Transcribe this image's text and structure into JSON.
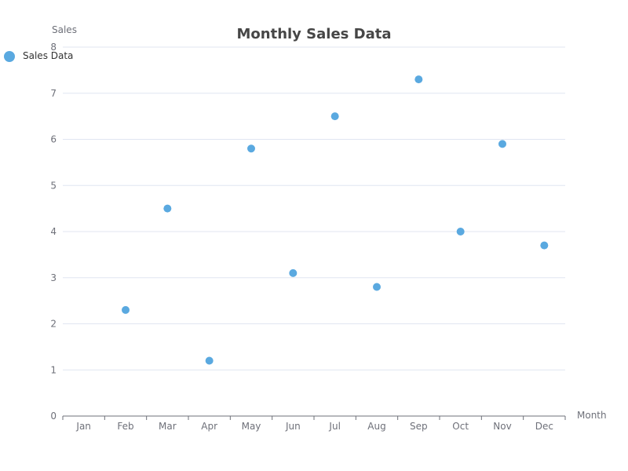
{
  "chart_data": {
    "type": "scatter",
    "title": "Monthly Sales Data",
    "xlabel": "Month",
    "ylabel": "Sales",
    "categories": [
      "Jan",
      "Feb",
      "Mar",
      "Apr",
      "May",
      "Jun",
      "Jul",
      "Aug",
      "Sep",
      "Oct",
      "Nov",
      "Dec"
    ],
    "series": [
      {
        "name": "Sales Data",
        "points": [
          {
            "x": "Feb",
            "y": 2.3
          },
          {
            "x": "Mar",
            "y": 4.5
          },
          {
            "x": "Apr",
            "y": 1.2
          },
          {
            "x": "May",
            "y": 5.8
          },
          {
            "x": "Jun",
            "y": 3.1
          },
          {
            "x": "Jul",
            "y": 6.5
          },
          {
            "x": "Aug",
            "y": 2.8
          },
          {
            "x": "Sep",
            "y": 7.3
          },
          {
            "x": "Oct",
            "y": 4.0
          },
          {
            "x": "Nov",
            "y": 5.9
          },
          {
            "x": "Dec",
            "y": 3.7
          }
        ]
      }
    ],
    "ylim": [
      0,
      8
    ],
    "yticks": [
      0,
      1,
      2,
      3,
      4,
      5,
      6,
      7,
      8
    ],
    "grid": true,
    "legend_position": "top-left",
    "colors": {
      "series": "#5aa9e0",
      "grid": "#e0e6f1",
      "axis": "#6e7079"
    }
  }
}
